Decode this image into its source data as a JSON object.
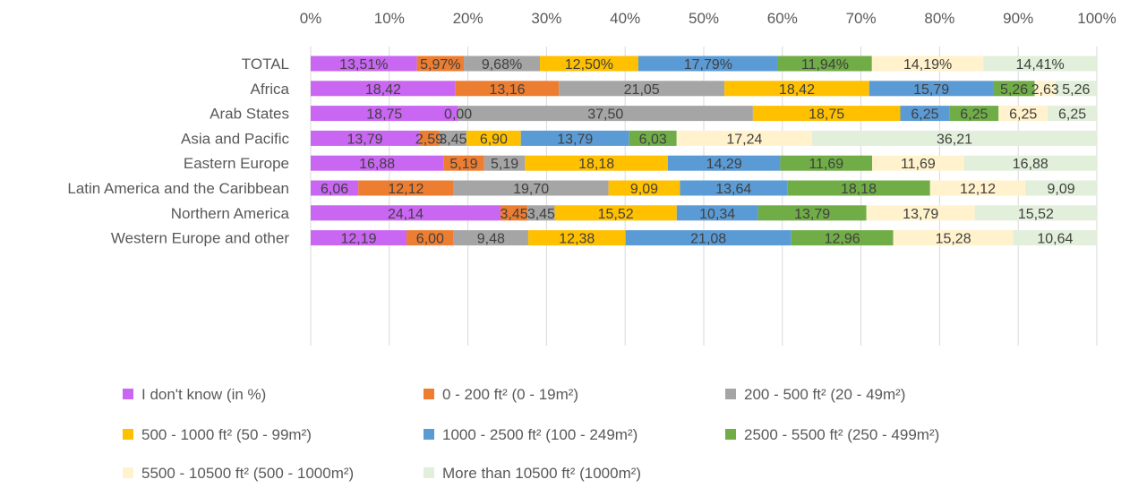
{
  "chart_data": {
    "type": "bar",
    "orientation": "horizontal",
    "stacked": true,
    "xlim": [
      0,
      100
    ],
    "x_ticks": [
      "0%",
      "10%",
      "20%",
      "30%",
      "40%",
      "50%",
      "60%",
      "70%",
      "80%",
      "90%",
      "100%"
    ],
    "grid": true,
    "legend_position": "bottom",
    "categories": [
      "TOTAL",
      "Africa",
      "Arab States",
      "Asia and Pacific",
      "Eastern Europe",
      "Latin America and the Caribbean",
      "Northern America",
      "Western Europe and other"
    ],
    "series": [
      {
        "name": "I don't know (in %)",
        "color": "#c966f2",
        "values": [
          13.51,
          18.42,
          18.75,
          13.79,
          16.88,
          6.06,
          24.14,
          12.19
        ],
        "labels": [
          "13,51%",
          "18,42",
          "18,75",
          "13,79",
          "16,88",
          "6,06",
          "24,14",
          "12,19"
        ]
      },
      {
        "name": "0 - 200 ft² (0 - 19m²)",
        "color": "#ed7d31",
        "values": [
          5.97,
          13.16,
          0.0,
          2.59,
          5.19,
          12.12,
          3.45,
          6.0
        ],
        "labels": [
          "5,97%",
          "13,16",
          "0,00",
          "2,59",
          "5,19",
          "12,12",
          "3,45",
          "6,00"
        ]
      },
      {
        "name": "200 - 500 ft² (20 - 49m²)",
        "color": "#a5a5a5",
        "values": [
          9.68,
          21.05,
          37.5,
          3.45,
          5.19,
          19.7,
          3.45,
          9.48
        ],
        "labels": [
          "9,68%",
          "21,05",
          "37,50",
          "3,45",
          "5,19",
          "19,70",
          "3,45",
          "9,48"
        ]
      },
      {
        "name": "500 - 1000 ft² (50 - 99m²)",
        "color": "#ffc000",
        "values": [
          12.5,
          18.42,
          18.75,
          6.9,
          18.18,
          9.09,
          15.52,
          12.38
        ],
        "labels": [
          "12,50%",
          "18,42",
          "18,75",
          "6,90",
          "18,18",
          "9,09",
          "15,52",
          "12,38"
        ]
      },
      {
        "name": "1000 - 2500 ft² (100 - 249m²)",
        "color": "#5b9bd5",
        "values": [
          17.79,
          15.79,
          6.25,
          13.79,
          14.29,
          13.64,
          10.34,
          21.08
        ],
        "labels": [
          "17,79%",
          "15,79",
          "6,25",
          "13,79",
          "14,29",
          "13,64",
          "10,34",
          "21,08"
        ]
      },
      {
        "name": "2500 - 5500 ft² (250 - 499m²)",
        "color": "#70ad47",
        "values": [
          11.94,
          5.26,
          6.25,
          6.03,
          11.69,
          18.18,
          13.79,
          12.96
        ],
        "labels": [
          "11,94%",
          "5,26",
          "6,25",
          "6,03",
          "11,69",
          "18,18",
          "13,79",
          "12,96"
        ]
      },
      {
        "name": "5500 - 10500 ft² (500 - 1000m²)",
        "color": "#fff2cc",
        "values": [
          14.19,
          2.63,
          6.25,
          17.24,
          11.69,
          12.12,
          13.79,
          15.28
        ],
        "labels": [
          "14,19%",
          "2,63",
          "6,25",
          "17,24",
          "11,69",
          "12,12",
          "13,79",
          "15,28"
        ]
      },
      {
        "name": "More than 10500 ft² (1000m²)",
        "color": "#e2efda",
        "values": [
          14.41,
          5.26,
          6.25,
          36.21,
          16.88,
          9.09,
          15.52,
          10.64
        ],
        "labels": [
          "14,41%",
          "5,26",
          "6,25",
          "36,21",
          "16,88",
          "9,09",
          "15,52",
          "10,64"
        ]
      }
    ]
  }
}
